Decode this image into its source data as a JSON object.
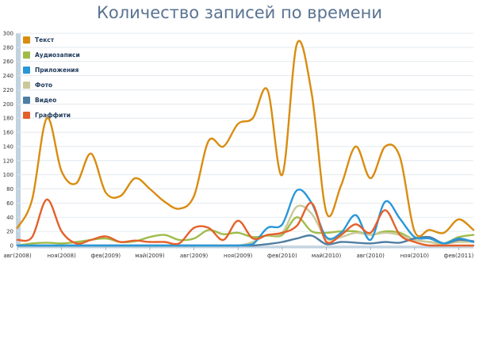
{
  "chart_data": {
    "type": "line",
    "title": "Количество записей по времени",
    "xlabel": "",
    "ylabel": "",
    "ylim": [
      0,
      300
    ],
    "yticks": [
      0,
      20,
      40,
      60,
      80,
      100,
      120,
      140,
      160,
      180,
      200,
      220,
      240,
      260,
      280,
      300
    ],
    "grid": true,
    "legend_position": "top-left",
    "x_tick_labels": [
      "авг(2008)",
      "ноя(2008)",
      "фев(2009)",
      "май(2009)",
      "авг(2009)",
      "ноя(2009)",
      "фев(2010)",
      "май(2010)",
      "авг(2010)",
      "ноя(2010)",
      "фев(2011)"
    ],
    "x": [
      "авг(2008)",
      "сен(2008)",
      "окт(2008)",
      "ноя(2008)",
      "дек(2008)",
      "янв(2009)",
      "фев(2009)",
      "мар(2009)",
      "апр(2009)",
      "май(2009)",
      "июн(2009)",
      "июл(2009)",
      "авг(2009)",
      "сен(2009)",
      "окт(2009)",
      "ноя(2009)",
      "дек(2009)",
      "янв(2010)",
      "фев(2010)",
      "мар(2010)",
      "апр(2010)",
      "май(2010)",
      "июн(2010)",
      "июл(2010)",
      "авг(2010)",
      "сен(2010)",
      "окт(2010)",
      "ноя(2010)",
      "дек(2010)",
      "янв(2011)",
      "фев(2011)",
      "мар(2011)"
    ],
    "series": [
      {
        "name": "Текст",
        "color": "#d98c10",
        "values": [
          25,
          65,
          180,
          105,
          88,
          130,
          75,
          70,
          95,
          80,
          62,
          52,
          70,
          148,
          140,
          172,
          180,
          220,
          100,
          285,
          215,
          47,
          85,
          140,
          95,
          140,
          125,
          20,
          22,
          18,
          37,
          22
        ]
      },
      {
        "name": "Аудиозаписи",
        "color": "#9fbc4a",
        "values": [
          0,
          3,
          4,
          3,
          5,
          8,
          10,
          5,
          6,
          12,
          15,
          8,
          10,
          22,
          16,
          18,
          12,
          14,
          15,
          40,
          20,
          18,
          20,
          20,
          15,
          20,
          18,
          8,
          5,
          3,
          12,
          15
        ]
      },
      {
        "name": "Приложения",
        "color": "#2a97d8",
        "values": [
          0,
          0,
          0,
          0,
          0,
          0,
          0,
          0,
          0,
          0,
          0,
          0,
          0,
          0,
          0,
          0,
          2,
          25,
          30,
          78,
          60,
          12,
          18,
          43,
          8,
          62,
          38,
          12,
          10,
          3,
          10,
          5
        ]
      },
      {
        "name": "Фото",
        "color": "#c9c99a",
        "values": [
          0,
          0,
          0,
          0,
          0,
          0,
          0,
          0,
          0,
          0,
          0,
          0,
          0,
          0,
          0,
          0,
          5,
          15,
          18,
          55,
          45,
          10,
          12,
          18,
          15,
          18,
          15,
          8,
          5,
          3,
          5,
          5
        ]
      },
      {
        "name": "Видео",
        "color": "#4f7ea3",
        "values": [
          0,
          0,
          0,
          0,
          0,
          0,
          0,
          0,
          0,
          0,
          0,
          0,
          0,
          0,
          0,
          0,
          0,
          2,
          5,
          10,
          14,
          2,
          5,
          4,
          3,
          5,
          4,
          10,
          12,
          3,
          8,
          6
        ]
      },
      {
        "name": "Граффити",
        "color": "#e4602a",
        "values": [
          8,
          12,
          65,
          20,
          3,
          8,
          13,
          5,
          7,
          5,
          5,
          3,
          25,
          25,
          8,
          35,
          10,
          15,
          18,
          28,
          60,
          5,
          15,
          30,
          18,
          50,
          15,
          5,
          0,
          0,
          0,
          0
        ]
      }
    ]
  }
}
